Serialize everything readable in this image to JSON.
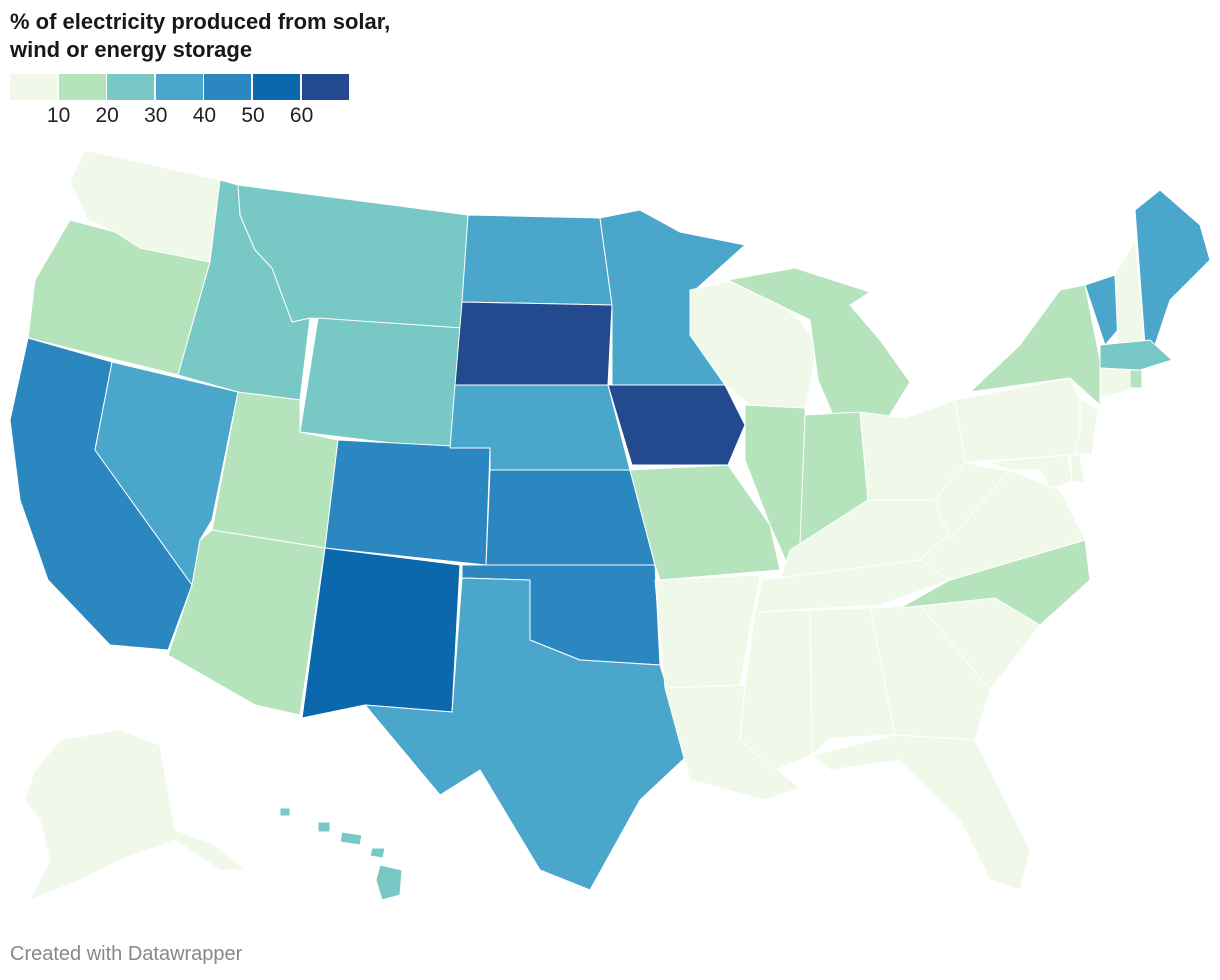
{
  "title": "% of electricity produced from solar, wind or energy storage",
  "legend": {
    "colors": [
      "#f0f8e9",
      "#b4e3bc",
      "#78c8c6",
      "#4aa6cb",
      "#2b87bf",
      "#0b68ac",
      "#234a8e"
    ],
    "ticks": [
      "10",
      "20",
      "30",
      "40",
      "50",
      "60"
    ]
  },
  "states": {
    "WA": 0,
    "OR": 1,
    "CA": 4,
    "NV": 3,
    "ID": 2,
    "MT": 2,
    "WY": 2,
    "UT": 1,
    "AZ": 1,
    "CO": 4,
    "NM": 5,
    "ND": 3,
    "SD": 6,
    "NE": 3,
    "KS": 4,
    "OK": 4,
    "TX": 3,
    "MN": 3,
    "IA": 6,
    "MO": 1,
    "AR": 0,
    "LA": 0,
    "WI": 0,
    "IL": 1,
    "MI": 1,
    "IN": 1,
    "OH": 0,
    "KY": 0,
    "TN": 0,
    "MS": 0,
    "AL": 0,
    "GA": 0,
    "FL": 0,
    "SC": 0,
    "NC": 1,
    "VA": 0,
    "WV": 0,
    "PA": 0,
    "NY": 1,
    "VT": 3,
    "NH": 0,
    "ME": 3,
    "MA": 2,
    "RI": 1,
    "CT": 0,
    "NJ": 0,
    "DE": 0,
    "MD": 0,
    "AK": 0,
    "HI": 2
  },
  "footer": "Created with Datawrapper"
}
